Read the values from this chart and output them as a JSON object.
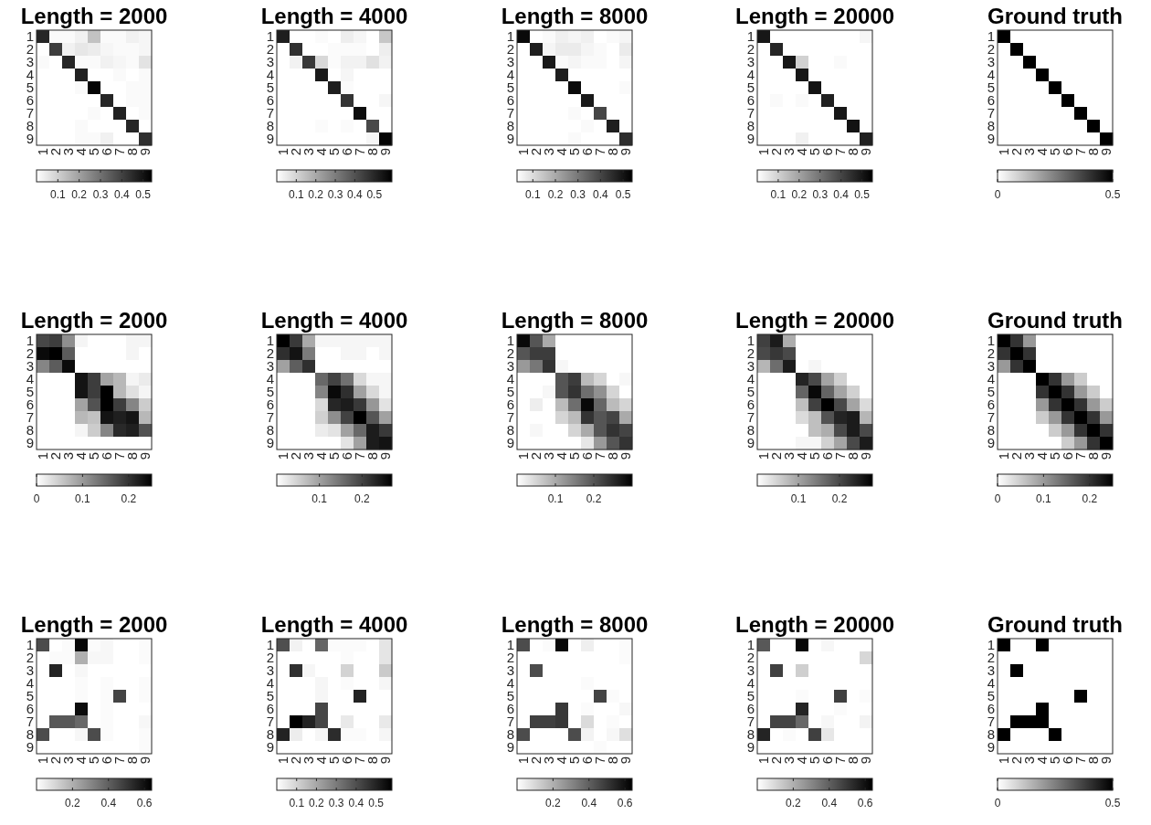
{
  "chart_data": [
    {
      "type": "heatmap",
      "title": "Length = 2000",
      "categories": [
        "1",
        "2",
        "3",
        "4",
        "5",
        "6",
        "7",
        "8",
        "9"
      ],
      "y_categories": [
        "1",
        "2",
        "3",
        "4",
        "5",
        "6",
        "7",
        "8",
        "9"
      ],
      "clim": [
        0,
        0.54
      ],
      "cticks": [
        0.1,
        0.2,
        0.3,
        0.4,
        0.5
      ],
      "cells": [
        [
          0.46,
          0.01,
          0.01,
          0.03,
          0.13,
          0.01,
          0.01,
          0.03,
          0.02
        ],
        [
          0,
          0.41,
          0.03,
          0.05,
          0.04,
          0.02,
          0.01,
          0.01,
          0.02
        ],
        [
          0.01,
          0,
          0.46,
          0.01,
          0.01,
          0.03,
          0.02,
          0.01,
          0.06
        ],
        [
          0,
          0,
          0,
          0.47,
          0,
          0,
          0.01,
          0,
          0.01
        ],
        [
          0,
          0,
          0,
          0.01,
          0.53,
          0,
          0,
          0.01,
          0.01
        ],
        [
          0,
          0,
          0,
          0,
          0,
          0.46,
          0,
          0.01,
          0.01
        ],
        [
          0,
          0,
          0,
          0,
          0.01,
          0,
          0.47,
          0,
          0.01
        ],
        [
          0,
          0,
          0,
          0.01,
          0,
          0,
          0,
          0.46,
          0
        ],
        [
          0,
          0,
          0,
          0.01,
          0.01,
          0.03,
          0,
          0,
          0.44
        ]
      ]
    },
    {
      "type": "heatmap",
      "title": "Length = 4000",
      "categories": [
        "1",
        "2",
        "3",
        "4",
        "5",
        "6",
        "7",
        "8",
        "9"
      ],
      "y_categories": [
        "1",
        "2",
        "3",
        "4",
        "5",
        "6",
        "7",
        "8",
        "9"
      ],
      "clim": [
        0,
        0.59
      ],
      "cticks": [
        0.1,
        0.2,
        0.3,
        0.4,
        0.5
      ],
      "cells": [
        [
          0.52,
          0,
          0,
          0.01,
          0,
          0.04,
          0.02,
          0,
          0.13
        ],
        [
          0,
          0.48,
          0,
          0,
          0.01,
          0.01,
          0.01,
          0,
          0.04
        ],
        [
          0,
          0.03,
          0.46,
          0.09,
          0.01,
          0.03,
          0.03,
          0.07,
          0.03
        ],
        [
          0,
          0,
          0,
          0.53,
          0,
          0.02,
          0,
          0,
          0
        ],
        [
          0,
          0,
          0,
          0,
          0.52,
          0.01,
          0,
          0,
          0
        ],
        [
          0,
          0,
          0,
          0,
          0,
          0.47,
          0,
          0,
          0.02
        ],
        [
          0,
          0,
          0,
          0,
          0,
          0,
          0.56,
          0,
          0
        ],
        [
          0,
          0,
          0,
          0.01,
          0,
          0.01,
          0,
          0.42,
          0
        ],
        [
          0,
          0,
          0,
          0,
          0,
          0,
          0,
          0.02,
          0.58
        ]
      ]
    },
    {
      "type": "heatmap",
      "title": "Length = 8000",
      "categories": [
        "1",
        "2",
        "3",
        "4",
        "5",
        "6",
        "7",
        "8",
        "9"
      ],
      "y_categories": [
        "1",
        "2",
        "3",
        "4",
        "5",
        "6",
        "7",
        "8",
        "9"
      ],
      "clim": [
        0.03,
        0.54
      ],
      "cticks": [
        0.1,
        0.2,
        0.3,
        0.4,
        0.5
      ],
      "cells": [
        [
          0.52,
          0.03,
          0.04,
          0.06,
          0.05,
          0.06,
          0.03,
          0.04,
          0.05
        ],
        [
          0.03,
          0.48,
          0.05,
          0.07,
          0.07,
          0.05,
          0.04,
          0.03,
          0.07
        ],
        [
          0.03,
          0.03,
          0.49,
          0.04,
          0.05,
          0.04,
          0.04,
          0.03,
          0.05
        ],
        [
          0.03,
          0.03,
          0.03,
          0.48,
          0.03,
          0.03,
          0.03,
          0.03,
          0.03
        ],
        [
          0.03,
          0.03,
          0.03,
          0.03,
          0.52,
          0.03,
          0.03,
          0.03,
          0.04
        ],
        [
          0.03,
          0.03,
          0.03,
          0.03,
          0.03,
          0.49,
          0.03,
          0.03,
          0.03
        ],
        [
          0.03,
          0.03,
          0.03,
          0.03,
          0.04,
          0.03,
          0.4,
          0.03,
          0.03
        ],
        [
          0.03,
          0.03,
          0.03,
          0.03,
          0.03,
          0.04,
          0.03,
          0.48,
          0.03
        ],
        [
          0.03,
          0.03,
          0.03,
          0.03,
          0.04,
          0.03,
          0.03,
          0.03,
          0.45
        ]
      ]
    },
    {
      "type": "heatmap",
      "title": "Length = 20000",
      "categories": [
        "1",
        "2",
        "3",
        "4",
        "5",
        "6",
        "7",
        "8",
        "9"
      ],
      "y_categories": [
        "1",
        "2",
        "3",
        "4",
        "5",
        "6",
        "7",
        "8",
        "9"
      ],
      "clim": [
        0,
        0.55
      ],
      "cticks": [
        0.1,
        0.2,
        0.3,
        0.4,
        0.5
      ],
      "cells": [
        [
          0.5,
          0,
          0,
          0,
          0,
          0,
          0,
          0,
          0.02
        ],
        [
          0,
          0.47,
          0,
          0,
          0,
          0,
          0,
          0,
          0
        ],
        [
          0,
          0,
          0.5,
          0.1,
          0,
          0,
          0.01,
          0,
          0
        ],
        [
          0,
          0,
          0,
          0.5,
          0,
          0,
          0,
          0,
          0
        ],
        [
          0,
          0,
          0,
          0,
          0.51,
          0,
          0,
          0,
          0
        ],
        [
          0,
          0.01,
          0,
          0.01,
          0,
          0.48,
          0,
          0,
          0
        ],
        [
          0,
          0,
          0,
          0,
          0,
          0,
          0.5,
          0,
          0
        ],
        [
          0,
          0,
          0,
          0,
          0,
          0,
          0,
          0.51,
          0
        ],
        [
          0,
          0,
          0,
          0.03,
          0,
          0,
          0,
          0,
          0.48
        ]
      ]
    },
    {
      "type": "heatmap",
      "title": "Ground truth",
      "categories": [
        "1",
        "2",
        "3",
        "4",
        "5",
        "6",
        "7",
        "8",
        "9"
      ],
      "y_categories": [
        "1",
        "2",
        "3",
        "4",
        "5",
        "6",
        "7",
        "8",
        "9"
      ],
      "clim": [
        0,
        0.5
      ],
      "cticks": [
        0,
        0.5
      ],
      "cells": [
        [
          0.5,
          0,
          0,
          0,
          0,
          0,
          0,
          0,
          0
        ],
        [
          0,
          0.5,
          0,
          0,
          0,
          0,
          0,
          0,
          0
        ],
        [
          0,
          0,
          0.5,
          0,
          0,
          0,
          0,
          0,
          0
        ],
        [
          0,
          0,
          0,
          0.5,
          0,
          0,
          0,
          0,
          0
        ],
        [
          0,
          0,
          0,
          0,
          0.5,
          0,
          0,
          0,
          0
        ],
        [
          0,
          0,
          0,
          0,
          0,
          0.5,
          0,
          0,
          0
        ],
        [
          0,
          0,
          0,
          0,
          0,
          0,
          0.5,
          0,
          0
        ],
        [
          0,
          0,
          0,
          0,
          0,
          0,
          0,
          0.5,
          0
        ],
        [
          0,
          0,
          0,
          0,
          0,
          0,
          0,
          0,
          0.5
        ]
      ]
    },
    {
      "type": "heatmap",
      "title": "Length = 2000",
      "categories": [
        "1",
        "2",
        "3",
        "4",
        "5",
        "6",
        "7",
        "8",
        "9"
      ],
      "y_categories": [
        "1",
        "2",
        "3",
        "4",
        "5",
        "6",
        "7",
        "8",
        "9"
      ],
      "clim": [
        0,
        0.25
      ],
      "cticks": [
        0,
        0.1,
        0.2
      ],
      "cells": [
        [
          0.18,
          0.19,
          0.11,
          0.01,
          0,
          0,
          0,
          0.01,
          0.01
        ],
        [
          0.24,
          0.25,
          0.16,
          0,
          0,
          0,
          0,
          0.01,
          0
        ],
        [
          0.12,
          0.16,
          0.24,
          0,
          0,
          0,
          0,
          0,
          0
        ],
        [
          0,
          0,
          0,
          0.23,
          0.19,
          0.09,
          0.07,
          0.01,
          0.02
        ],
        [
          0,
          0,
          0,
          0.23,
          0.19,
          0.25,
          0.07,
          0.03,
          0.01
        ],
        [
          0,
          0,
          0,
          0.09,
          0.17,
          0.25,
          0.19,
          0.12,
          0.05
        ],
        [
          0,
          0,
          0,
          0.07,
          0.06,
          0.23,
          0.22,
          0.23,
          0.07
        ],
        [
          0,
          0,
          0,
          0.01,
          0.05,
          0.12,
          0.21,
          0.22,
          0.17
        ],
        [
          0,
          0,
          0,
          0,
          0,
          0,
          0,
          0,
          0
        ]
      ]
    },
    {
      "type": "heatmap",
      "title": "Length = 4000",
      "categories": [
        "1",
        "2",
        "3",
        "4",
        "5",
        "6",
        "7",
        "8",
        "9"
      ],
      "y_categories": [
        "1",
        "2",
        "3",
        "4",
        "5",
        "6",
        "7",
        "8",
        "9"
      ],
      "clim": [
        0,
        0.27
      ],
      "cticks": [
        0.1,
        0.2
      ],
      "cells": [
        [
          0.27,
          0.21,
          0.09,
          0.01,
          0.01,
          0.01,
          0.01,
          0.01,
          0.01
        ],
        [
          0.22,
          0.25,
          0.14,
          0,
          0,
          0.01,
          0.01,
          0,
          0.01
        ],
        [
          0.1,
          0.17,
          0.22,
          0,
          0,
          0,
          0,
          0,
          0
        ],
        [
          0,
          0,
          0,
          0.16,
          0.2,
          0.15,
          0.04,
          0.01,
          0.01
        ],
        [
          0,
          0,
          0,
          0.13,
          0.26,
          0.22,
          0.1,
          0.04,
          0.01
        ],
        [
          0,
          0,
          0,
          0.04,
          0.23,
          0.24,
          0.21,
          0.11,
          0.03
        ],
        [
          0,
          0,
          0,
          0.05,
          0.12,
          0.2,
          0.27,
          0.18,
          0.1
        ],
        [
          0,
          0,
          0,
          0.02,
          0.03,
          0.1,
          0.16,
          0.24,
          0.21
        ],
        [
          0,
          0,
          0,
          0,
          0,
          0.03,
          0.1,
          0.24,
          0.25
        ]
      ]
    },
    {
      "type": "heatmap",
      "title": "Length = 8000",
      "categories": [
        "1",
        "2",
        "3",
        "4",
        "5",
        "6",
        "7",
        "8",
        "9"
      ],
      "y_categories": [
        "1",
        "2",
        "3",
        "4",
        "5",
        "6",
        "7",
        "8",
        "9"
      ],
      "clim": [
        0,
        0.3
      ],
      "cticks": [
        0.1,
        0.2
      ],
      "cells": [
        [
          0.29,
          0.2,
          0.1,
          0,
          0,
          0,
          0,
          0,
          0
        ],
        [
          0.2,
          0.23,
          0.23,
          0,
          0,
          0,
          0,
          0,
          0
        ],
        [
          0.12,
          0.16,
          0.24,
          0.01,
          0,
          0,
          0,
          0,
          0
        ],
        [
          0,
          0,
          0,
          0.2,
          0.23,
          0.08,
          0.05,
          0,
          0.01
        ],
        [
          0,
          0,
          0.01,
          0.2,
          0.24,
          0.17,
          0.13,
          0.05,
          0
        ],
        [
          0,
          0.02,
          0,
          0.08,
          0.17,
          0.29,
          0.18,
          0.08,
          0.05
        ],
        [
          0,
          0,
          0,
          0.05,
          0.08,
          0.24,
          0.2,
          0.22,
          0.1
        ],
        [
          0,
          0.01,
          0,
          0,
          0.05,
          0.1,
          0.2,
          0.24,
          0.22
        ],
        [
          0,
          0,
          0,
          0,
          0,
          0.03,
          0.12,
          0.2,
          0.24
        ]
      ]
    },
    {
      "type": "heatmap",
      "title": "Length = 20000",
      "categories": [
        "1",
        "2",
        "3",
        "4",
        "5",
        "6",
        "7",
        "8",
        "9"
      ],
      "y_categories": [
        "1",
        "2",
        "3",
        "4",
        "5",
        "6",
        "7",
        "8",
        "9"
      ],
      "clim": [
        0,
        0.28
      ],
      "cticks": [
        0.1,
        0.2
      ],
      "cells": [
        [
          0.21,
          0.25,
          0.09,
          0,
          0,
          0,
          0,
          0,
          0
        ],
        [
          0.2,
          0.22,
          0.2,
          0,
          0,
          0,
          0,
          0,
          0
        ],
        [
          0.08,
          0.16,
          0.25,
          0,
          0.01,
          0,
          0,
          0,
          0
        ],
        [
          0,
          0,
          0,
          0.24,
          0.2,
          0.1,
          0.05,
          0,
          0
        ],
        [
          0,
          0,
          0,
          0.17,
          0.27,
          0.17,
          0.1,
          0.05,
          0
        ],
        [
          0,
          0,
          0,
          0.07,
          0.21,
          0.28,
          0.2,
          0.1,
          0.04
        ],
        [
          0,
          0,
          0,
          0.04,
          0.07,
          0.19,
          0.24,
          0.25,
          0.08
        ],
        [
          0,
          0,
          0,
          0,
          0.07,
          0.09,
          0.2,
          0.25,
          0.2
        ],
        [
          0,
          0,
          0,
          0.01,
          0.01,
          0.05,
          0.1,
          0.2,
          0.25
        ]
      ]
    },
    {
      "type": "heatmap",
      "title": "Ground truth",
      "categories": [
        "1",
        "2",
        "3",
        "4",
        "5",
        "6",
        "7",
        "8",
        "9"
      ],
      "y_categories": [
        "1",
        "2",
        "3",
        "4",
        "5",
        "6",
        "7",
        "8",
        "9"
      ],
      "clim": [
        0,
        0.25
      ],
      "cticks": [
        0,
        0.1,
        0.2
      ],
      "cells": [
        [
          0.25,
          0.2,
          0.1,
          0,
          0,
          0,
          0,
          0,
          0
        ],
        [
          0.2,
          0.25,
          0.2,
          0,
          0,
          0,
          0,
          0,
          0
        ],
        [
          0.1,
          0.2,
          0.25,
          0,
          0,
          0,
          0,
          0,
          0
        ],
        [
          0,
          0,
          0,
          0.25,
          0.2,
          0.1,
          0.05,
          0,
          0
        ],
        [
          0,
          0,
          0,
          0.2,
          0.25,
          0.2,
          0.1,
          0.05,
          0
        ],
        [
          0,
          0,
          0,
          0.1,
          0.2,
          0.25,
          0.2,
          0.1,
          0.05
        ],
        [
          0,
          0,
          0,
          0.05,
          0.1,
          0.2,
          0.25,
          0.2,
          0.1
        ],
        [
          0,
          0,
          0,
          0,
          0.05,
          0.1,
          0.2,
          0.25,
          0.2
        ],
        [
          0,
          0,
          0,
          0,
          0,
          0.05,
          0.1,
          0.2,
          0.25
        ]
      ]
    },
    {
      "type": "heatmap",
      "title": "Length = 2000",
      "categories": [
        "1",
        "2",
        "3",
        "4",
        "5",
        "6",
        "7",
        "8",
        "9"
      ],
      "y_categories": [
        "1",
        "2",
        "3",
        "4",
        "5",
        "6",
        "7",
        "8",
        "9"
      ],
      "clim": [
        0,
        0.64
      ],
      "cticks": [
        0.2,
        0.4,
        0.6
      ],
      "cells": [
        [
          0.45,
          0,
          0.01,
          0.62,
          0.01,
          0.02,
          0,
          0,
          0.01
        ],
        [
          0,
          0.01,
          0.01,
          0.2,
          0.02,
          0.02,
          0,
          0,
          0.01
        ],
        [
          0,
          0.55,
          0,
          0.02,
          0,
          0,
          0,
          0,
          0
        ],
        [
          0,
          0,
          0,
          0.01,
          0,
          0.01,
          0,
          0,
          0.01
        ],
        [
          0,
          0,
          0,
          0.01,
          0,
          0.01,
          0.47,
          0,
          0.01
        ],
        [
          0,
          0,
          0,
          0.61,
          0,
          0.01,
          0,
          0,
          0
        ],
        [
          0,
          0.42,
          0.42,
          0.38,
          0,
          0.01,
          0,
          0,
          0.02
        ],
        [
          0.45,
          0,
          0,
          0.02,
          0.45,
          0.01,
          0,
          0,
          0.01
        ],
        [
          0,
          0,
          0,
          0,
          0,
          0,
          0,
          0,
          0.01
        ]
      ]
    },
    {
      "type": "heatmap",
      "title": "Length = 4000",
      "categories": [
        "1",
        "2",
        "3",
        "4",
        "5",
        "6",
        "7",
        "8",
        "9"
      ],
      "y_categories": [
        "1",
        "2",
        "3",
        "4",
        "5",
        "6",
        "7",
        "8",
        "9"
      ],
      "clim": [
        0,
        0.58
      ],
      "cticks": [
        0.1,
        0.2,
        0.3,
        0.4,
        0.5
      ],
      "cells": [
        [
          0.4,
          0.03,
          0,
          0.35,
          0.01,
          0.01,
          0.01,
          0,
          0.06
        ],
        [
          0,
          0,
          0,
          0,
          0,
          0.01,
          0,
          0,
          0.06
        ],
        [
          0,
          0.47,
          0.02,
          0,
          0,
          0.1,
          0,
          0,
          0.12
        ],
        [
          0,
          0,
          0,
          0.02,
          0,
          0.01,
          0,
          0,
          0.02
        ],
        [
          0,
          0,
          0,
          0.02,
          0,
          0,
          0.5,
          0,
          0
        ],
        [
          0,
          0,
          0,
          0.42,
          0,
          0,
          0,
          0,
          0
        ],
        [
          0,
          0.58,
          0.5,
          0.42,
          0,
          0.05,
          0,
          0,
          0.05
        ],
        [
          0.5,
          0.04,
          0,
          0.02,
          0.48,
          0.01,
          0.01,
          0,
          0.02
        ],
        [
          0,
          0,
          0,
          0,
          0,
          0,
          0,
          0,
          0
        ]
      ]
    },
    {
      "type": "heatmap",
      "title": "Length = 8000",
      "categories": [
        "1",
        "2",
        "3",
        "4",
        "5",
        "6",
        "7",
        "8",
        "9"
      ],
      "y_categories": [
        "1",
        "2",
        "3",
        "4",
        "5",
        "6",
        "7",
        "8",
        "9"
      ],
      "clim": [
        0,
        0.64
      ],
      "cticks": [
        0.2,
        0.4,
        0.6
      ],
      "cells": [
        [
          0.45,
          0,
          0.01,
          0.62,
          0,
          0.04,
          0,
          0,
          0.01
        ],
        [
          0,
          0,
          0,
          0,
          0,
          0,
          0,
          0,
          0.01
        ],
        [
          0,
          0.45,
          0,
          0,
          0,
          0,
          0,
          0,
          0
        ],
        [
          0,
          0,
          0,
          0,
          0,
          0.01,
          0,
          0,
          0
        ],
        [
          0,
          0,
          0,
          0,
          0,
          0,
          0.47,
          0.01,
          0
        ],
        [
          0,
          0,
          0,
          0.5,
          0,
          0.01,
          0,
          0,
          0.02
        ],
        [
          0,
          0.48,
          0.48,
          0.5,
          0,
          0.09,
          0,
          0.01,
          0
        ],
        [
          0.45,
          0,
          0,
          0,
          0.45,
          0.03,
          0,
          0.02,
          0.08
        ],
        [
          0,
          0,
          0,
          0,
          0,
          0,
          0.01,
          0,
          0
        ]
      ]
    },
    {
      "type": "heatmap",
      "title": "Length = 20000",
      "categories": [
        "1",
        "2",
        "3",
        "4",
        "5",
        "6",
        "7",
        "8",
        "9"
      ],
      "y_categories": [
        "1",
        "2",
        "3",
        "4",
        "5",
        "6",
        "7",
        "8",
        "9"
      ],
      "clim": [
        0,
        0.64
      ],
      "cticks": [
        0.2,
        0.4,
        0.6
      ],
      "cells": [
        [
          0.42,
          0,
          0,
          0.62,
          0,
          0.02,
          0,
          0,
          0
        ],
        [
          0,
          0,
          0,
          0,
          0,
          0,
          0,
          0,
          0.1
        ],
        [
          0,
          0.48,
          0,
          0.12,
          0,
          0,
          0,
          0,
          0
        ],
        [
          0,
          0,
          0,
          0,
          0,
          0,
          0,
          0,
          0
        ],
        [
          0,
          0,
          0,
          0.01,
          0,
          0,
          0.48,
          0,
          0.01
        ],
        [
          0,
          0,
          0,
          0.55,
          0,
          0,
          0.01,
          0,
          0
        ],
        [
          0,
          0.47,
          0.47,
          0.38,
          0,
          0.02,
          0,
          0,
          0.03
        ],
        [
          0.55,
          0,
          0.01,
          0,
          0.48,
          0.06,
          0,
          0,
          0
        ],
        [
          0,
          0,
          0,
          0,
          0,
          0,
          0,
          0,
          0
        ]
      ]
    },
    {
      "type": "heatmap",
      "title": "Ground truth",
      "categories": [
        "1",
        "2",
        "3",
        "4",
        "5",
        "6",
        "7",
        "8",
        "9"
      ],
      "y_categories": [
        "1",
        "2",
        "3",
        "4",
        "5",
        "6",
        "7",
        "8",
        "9"
      ],
      "clim": [
        0,
        0.5
      ],
      "cticks": [
        0,
        0.5
      ],
      "cells": [
        [
          0.5,
          0,
          0,
          0.5,
          0,
          0,
          0,
          0,
          0
        ],
        [
          0,
          0,
          0,
          0,
          0,
          0,
          0,
          0,
          0
        ],
        [
          0,
          0.5,
          0,
          0,
          0,
          0,
          0,
          0,
          0
        ],
        [
          0,
          0,
          0,
          0,
          0,
          0,
          0,
          0,
          0
        ],
        [
          0,
          0,
          0,
          0,
          0,
          0,
          0.5,
          0,
          0
        ],
        [
          0,
          0,
          0,
          0.5,
          0,
          0,
          0,
          0,
          0
        ],
        [
          0,
          0.5,
          0.5,
          0.5,
          0,
          0,
          0,
          0,
          0
        ],
        [
          0.5,
          0,
          0,
          0,
          0.5,
          0,
          0,
          0,
          0
        ],
        [
          0,
          0,
          0,
          0,
          0,
          0,
          0,
          0,
          0
        ]
      ]
    }
  ]
}
